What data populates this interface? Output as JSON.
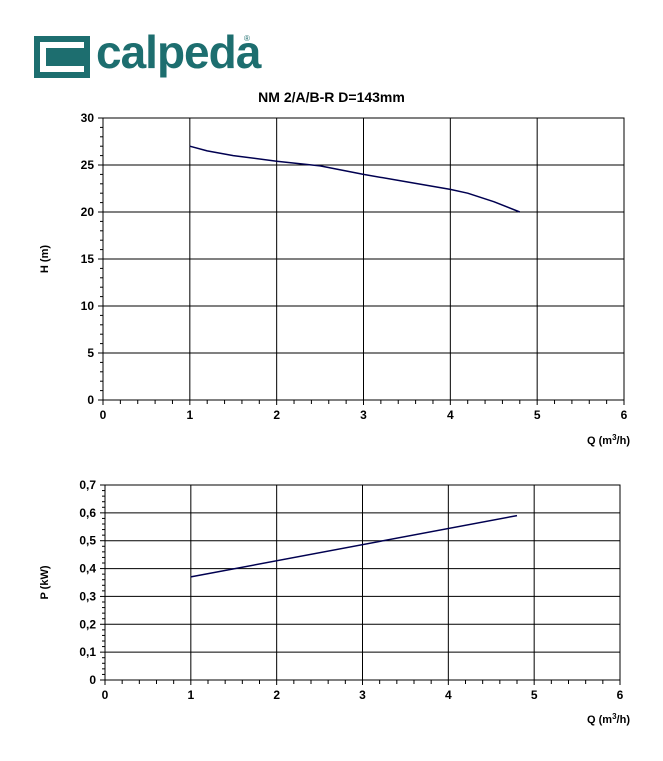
{
  "logo": {
    "brand": "calpeda",
    "reg": "®",
    "color": "#1d6e6f"
  },
  "title": "NM 2/A/B-R D=143mm",
  "chart_data": [
    {
      "type": "line",
      "ylabel": "H (m)",
      "xlabel_main": "Q (m",
      "xlabel_sup": "3",
      "xlabel_end": "/h)",
      "xlim": [
        0,
        6
      ],
      "ylim": [
        0,
        30
      ],
      "x_ticks": [
        0,
        1,
        2,
        3,
        4,
        5,
        6
      ],
      "x_tick_labels": [
        "0",
        "1",
        "2",
        "3",
        "4",
        "5",
        "6"
      ],
      "y_ticks": [
        0,
        5,
        10,
        15,
        20,
        25,
        30
      ],
      "y_tick_labels": [
        "0",
        "5",
        "10",
        "15",
        "20",
        "25",
        "30"
      ],
      "grid": true,
      "series": [
        {
          "x": [
            1.0,
            1.2,
            1.5,
            2.0,
            2.5,
            3.0,
            3.5,
            4.0,
            4.2,
            4.5,
            4.8
          ],
          "y": [
            27.0,
            26.5,
            26.0,
            25.4,
            24.9,
            24.0,
            23.2,
            22.4,
            22.0,
            21.1,
            20.0
          ],
          "color": "#000050"
        }
      ]
    },
    {
      "type": "line",
      "ylabel": "P (kW)",
      "xlabel_main": "Q (m",
      "xlabel_sup": "3",
      "xlabel_end": "/h)",
      "xlim": [
        0,
        6
      ],
      "ylim": [
        0,
        0.7
      ],
      "x_ticks": [
        0,
        1,
        2,
        3,
        4,
        5,
        6
      ],
      "x_tick_labels": [
        "0",
        "1",
        "2",
        "3",
        "4",
        "5",
        "6"
      ],
      "y_ticks": [
        0,
        0.1,
        0.2,
        0.3,
        0.4,
        0.5,
        0.6,
        0.7
      ],
      "y_tick_labels": [
        "0",
        "0,1",
        "0,2",
        "0,3",
        "0,4",
        "0,5",
        "0,6",
        "0,7"
      ],
      "grid": true,
      "series": [
        {
          "x": [
            1.0,
            4.8
          ],
          "y": [
            0.37,
            0.59
          ],
          "color": "#000050"
        }
      ]
    }
  ]
}
